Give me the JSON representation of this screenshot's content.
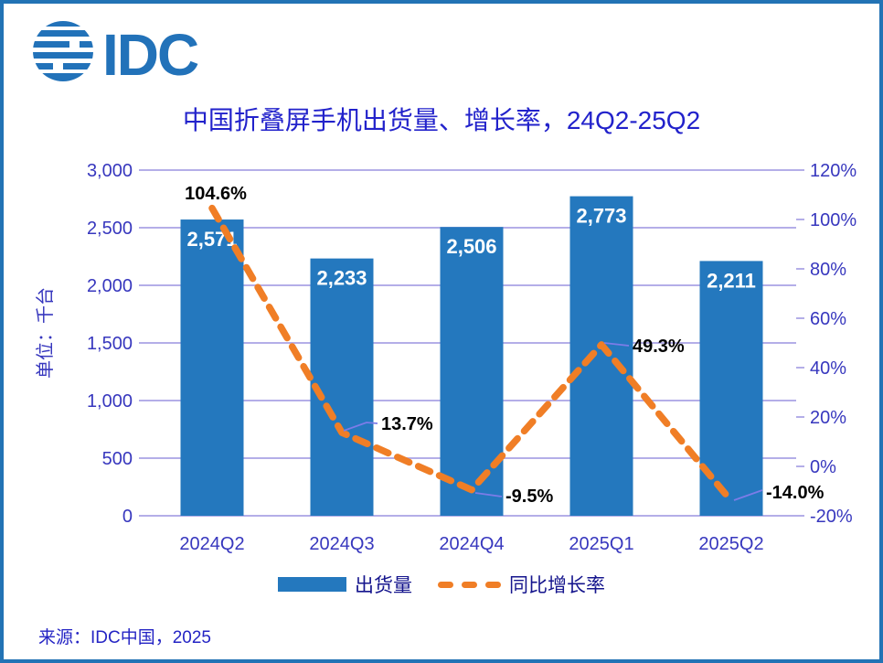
{
  "logo": {
    "text": "IDC"
  },
  "source": "来源：IDC中国，2025",
  "colors": {
    "frame_border": "#2273B5",
    "bar": "#2478BE",
    "line": "#F07E26",
    "grid": "#B4AEE8",
    "title_text": "#2222CB",
    "axis_text": "#3737BE",
    "legend_text": "#15158D",
    "source_text": "#2424C4",
    "bar_label": "#FFFFFF",
    "point_label": "#000000",
    "leader": "#7C7CE8",
    "logo": "#2272B9"
  },
  "chart_data": {
    "type": "combo",
    "title": "中国折叠屏手机出货量、增长率，24Q2-25Q2",
    "categories": [
      "2024Q2",
      "2024Q3",
      "2024Q4",
      "2025Q1",
      "2025Q2"
    ],
    "series": [
      {
        "name": "出货量",
        "type": "bar",
        "axis": "left",
        "values": [
          2571,
          2233,
          2506,
          2773,
          2211
        ],
        "color": "#2478BE"
      },
      {
        "name": "同比增长率",
        "type": "line",
        "style": "dashed",
        "axis": "right",
        "values": [
          104.6,
          13.7,
          -9.5,
          49.3,
          -14.0
        ],
        "color": "#F07E26"
      }
    ],
    "bar_value_labels": [
      "2,571",
      "2,233",
      "2,506",
      "2,773",
      "2,211"
    ],
    "line_value_labels": [
      "104.6%",
      "13.7%",
      "-9.5%",
      "49.3%",
      "-14.0%"
    ],
    "left_axis": {
      "title": "单位：千台",
      "min": 0,
      "max": 3000,
      "step": 500,
      "ticks": [
        "0",
        "500",
        "1,000",
        "1,500",
        "2,000",
        "2,500",
        "3,000"
      ]
    },
    "right_axis": {
      "min": -20,
      "max": 120,
      "step": 20,
      "ticks": [
        "-20%",
        "0%",
        "20%",
        "40%",
        "60%",
        "80%",
        "100%",
        "120%"
      ]
    },
    "grid": true,
    "legend_position": "bottom"
  }
}
